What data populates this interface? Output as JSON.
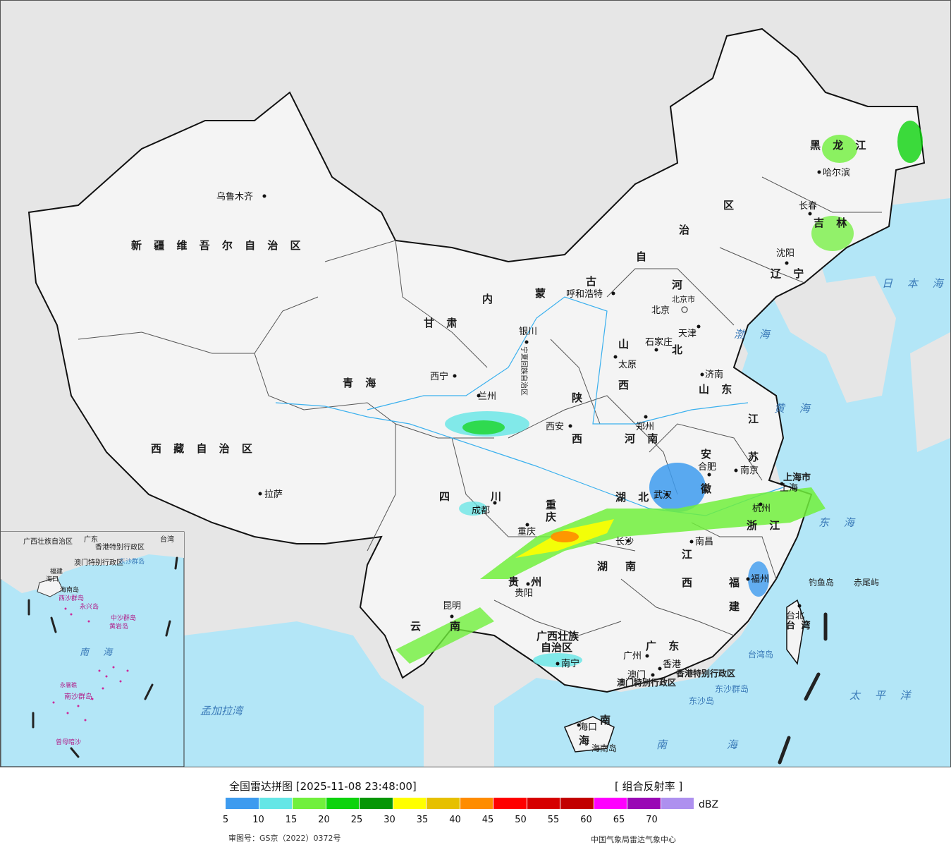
{
  "map": {
    "provinces": [
      "新 疆 维 吾 尔 自 治 区",
      "西 藏 自 治 区",
      "青 海",
      "甘 肃",
      "内",
      "蒙",
      "古",
      "自",
      "治",
      "区",
      "黑 龙 江",
      "吉 林",
      "辽 宁",
      "河",
      "北",
      "山",
      "西",
      "陕",
      "西",
      "河 南",
      "山 东",
      "江",
      "苏",
      "安",
      "徽",
      "湖 北",
      "湖",
      "南",
      "江",
      "西",
      "浙 江",
      "福",
      "建",
      "四",
      "川",
      "贵 州",
      "云",
      "南",
      "广西壮族",
      "自治区",
      "广 东",
      "海",
      "南",
      "重",
      "庆",
      "台 湾",
      "宁夏回族自治区"
    ],
    "cities": [
      "乌鲁木齐",
      "拉萨",
      "西宁",
      "兰州",
      "银川",
      "呼和浩特",
      "北京",
      "北京市",
      "天津",
      "石家庄",
      "太原",
      "济南",
      "郑州",
      "西安",
      "成都",
      "重庆",
      "贵阳",
      "昆明",
      "南宁",
      "长沙",
      "武汉",
      "合肥",
      "南京",
      "上海",
      "上海市",
      "杭州",
      "南昌",
      "福州",
      "台北",
      "广州",
      "澳门",
      "香港",
      "海口",
      "沈阳",
      "长春",
      "哈尔滨"
    ],
    "seas": [
      "日 本 海",
      "渤 海",
      "黄 海",
      "东 海",
      "太 平 洋",
      "南 海",
      "孟加拉湾"
    ],
    "islands": [
      "钓鱼岛",
      "赤尾屿",
      "台湾岛",
      "东沙群岛",
      "东沙岛",
      "海南岛",
      "香港特别行政区",
      "澳门特别行政区"
    ],
    "inset": {
      "labels": [
        "广西壮族自治区",
        "广东",
        "台湾",
        "香港特别行政区",
        "澳门特别行政区",
        "东沙群岛",
        "海口",
        "海南岛",
        "西沙群岛",
        "永兴岛",
        "中沙群岛",
        "黄岩岛",
        "南 海",
        "南沙群岛",
        "永暑礁",
        "曾母暗沙",
        "福建"
      ]
    }
  },
  "legend": {
    "title": "全国雷达拼图 [2025-11-08 23:48:00]",
    "product": "[ 组合反射率 ]",
    "unit": "dBZ",
    "colors": [
      "#3d9bef",
      "#64e6e6",
      "#71f03c",
      "#0dd30d",
      "#069606",
      "#ffff00",
      "#e6c000",
      "#ff8c00",
      "#ff0000",
      "#d60000",
      "#c20000",
      "#ff00ff",
      "#9908b5",
      "#ae90ef"
    ],
    "ticks": [
      "5",
      "10",
      "15",
      "20",
      "25",
      "30",
      "35",
      "40",
      "45",
      "50",
      "55",
      "60",
      "65",
      "70"
    ],
    "approval": "审图号：GS京（2022）0372号",
    "credit": "中国气象局雷达气象中心"
  }
}
